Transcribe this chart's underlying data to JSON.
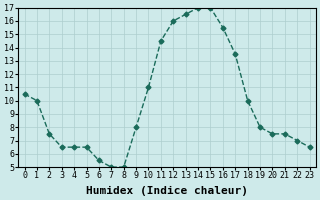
{
  "x": [
    0,
    1,
    2,
    3,
    4,
    5,
    6,
    7,
    8,
    9,
    10,
    11,
    12,
    13,
    14,
    15,
    16,
    17,
    18,
    19,
    20,
    21,
    22,
    23
  ],
  "y": [
    10.5,
    10.0,
    7.5,
    6.5,
    6.5,
    6.5,
    5.5,
    5.0,
    5.0,
    8.0,
    11.0,
    14.5,
    16.0,
    16.5,
    17.0,
    17.0,
    15.5,
    13.5,
    10.0,
    8.0,
    7.5,
    7.5,
    7.0,
    6.5
  ],
  "xlabel": "Humidex (Indice chaleur)",
  "ylim": [
    5,
    17
  ],
  "xlim_min": -0.5,
  "xlim_max": 23.5,
  "yticks": [
    5,
    6,
    7,
    8,
    9,
    10,
    11,
    12,
    13,
    14,
    15,
    16,
    17
  ],
  "xticks": [
    0,
    1,
    2,
    3,
    4,
    5,
    6,
    7,
    8,
    9,
    10,
    11,
    12,
    13,
    14,
    15,
    16,
    17,
    18,
    19,
    20,
    21,
    22,
    23
  ],
  "line_color": "#1a6b5a",
  "marker": "D",
  "marker_size": 2.5,
  "bg_color": "#ceeaea",
  "grid_color": "#aecece",
  "xlabel_fontsize": 8,
  "tick_fontsize": 6
}
